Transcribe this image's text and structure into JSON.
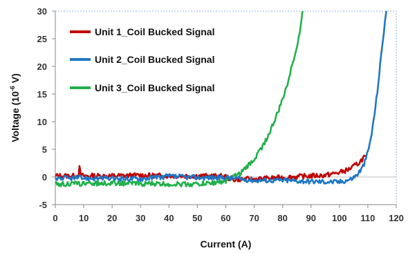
{
  "chart_data": {
    "type": "line",
    "title": "",
    "xlabel": "Current (A)",
    "ylabel_main": "Voltage (10",
    "ylabel_exp": "-6",
    "ylabel_unit": " V)",
    "xlim": [
      0,
      120
    ],
    "ylim": [
      -5,
      30
    ],
    "xticks": [
      0,
      10,
      20,
      30,
      40,
      50,
      60,
      70,
      80,
      90,
      100,
      110,
      120
    ],
    "yticks": [
      -5,
      0,
      5,
      10,
      15,
      20,
      25,
      30
    ],
    "grid": false,
    "legend_position": "top-left",
    "series": [
      {
        "name": "Unit 1_Coil Bucked Signal",
        "color": "#c00000",
        "x": [
          0,
          8,
          8.5,
          9,
          10,
          20,
          30,
          40,
          50,
          60,
          62,
          65,
          70,
          80,
          90,
          95,
          100,
          103,
          105,
          107,
          108,
          109
        ],
        "y": [
          0.2,
          0.2,
          1.6,
          0.3,
          0.2,
          0.2,
          0.3,
          0.2,
          0.2,
          0.1,
          -0.5,
          -0.4,
          -0.4,
          -0.1,
          0.2,
          0.3,
          0.8,
          1.3,
          1.9,
          2.6,
          3.2,
          3.8
        ]
      },
      {
        "name": "Unit 2_Coil Bucked Signal",
        "color": "#1f77c4",
        "x": [
          0,
          10,
          20,
          30,
          40,
          50,
          60,
          70,
          80,
          90,
          100,
          104,
          106,
          108,
          109,
          110,
          111,
          112,
          113,
          114,
          115,
          116,
          116.5
        ],
        "y": [
          -0.2,
          -0.2,
          -0.3,
          -0.3,
          0.1,
          -0.1,
          -0.1,
          -0.6,
          -0.6,
          -0.8,
          -0.9,
          -0.4,
          0.3,
          1.6,
          2.8,
          4.5,
          6.8,
          10,
          14,
          18.5,
          23.5,
          28,
          30
        ]
      },
      {
        "name": "Unit 3_Coil Bucked Signal",
        "color": "#21b04b",
        "x": [
          0,
          10,
          20,
          30,
          40,
          50,
          55,
          60,
          62,
          65,
          67,
          70,
          72,
          75,
          78,
          80,
          82,
          84,
          86,
          87
        ],
        "y": [
          -1.3,
          -1.2,
          -1.1,
          -1.2,
          -1.3,
          -1.3,
          -1.1,
          -0.7,
          -0.2,
          0.6,
          1.6,
          3.2,
          4.8,
          7.5,
          11.2,
          14,
          17.5,
          21.5,
          26,
          30
        ]
      }
    ]
  }
}
